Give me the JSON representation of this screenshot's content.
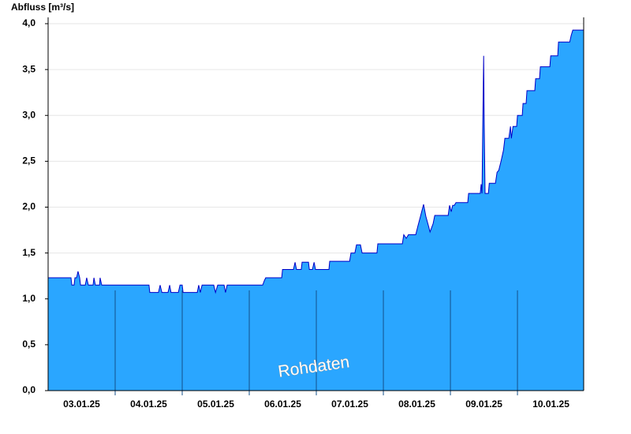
{
  "chart_data": {
    "type": "area",
    "y_label": "Abfluss [m³/s]",
    "annotation": "Rohdaten",
    "fill": "#2aa6ff",
    "color": "#0000c8",
    "grid": true,
    "xlim": [
      0,
      191.7
    ],
    "ylim": [
      0,
      4.0
    ],
    "xticks": [
      {
        "value": 12,
        "label": "03.01.25"
      },
      {
        "value": 36,
        "label": "04.01.25"
      },
      {
        "value": 60,
        "label": "05.01.25"
      },
      {
        "value": 84,
        "label": "06.01.25"
      },
      {
        "value": 108,
        "label": "07.01.25"
      },
      {
        "value": 132,
        "label": "08.01.25"
      },
      {
        "value": 156,
        "label": "09.01.25"
      },
      {
        "value": 180,
        "label": "10.01.25"
      }
    ],
    "xgrid": [
      24,
      48,
      72,
      96,
      120,
      144,
      168
    ],
    "yticks": [
      {
        "value": 0,
        "label": "0,0"
      },
      {
        "value": 0.5,
        "label": "0,5"
      },
      {
        "value": 1,
        "label": "1,0"
      },
      {
        "value": 1.5,
        "label": "1,5"
      },
      {
        "value": 2,
        "label": "2,0"
      },
      {
        "value": 2.5,
        "label": "2,5"
      },
      {
        "value": 3,
        "label": "3,0"
      },
      {
        "value": 3.5,
        "label": "3,5"
      },
      {
        "value": 4,
        "label": "4,0"
      }
    ],
    "x": [
      0,
      8.2,
      8.5,
      9.3,
      9.6,
      10.2,
      10.7,
      11.3,
      11.6,
      13.3,
      13.8,
      14.4,
      16.1,
      16.4,
      16.9,
      18.4,
      18.6,
      19.2,
      36.1,
      36.4,
      39.5,
      40.1,
      40.7,
      42.9,
      43.5,
      44.0,
      46.6,
      47.2,
      48.0,
      48.3,
      53.4,
      53.9,
      54.5,
      55.1,
      59.3,
      59.9,
      60.7,
      63.0,
      63.5,
      64.1,
      76.8,
      77.4,
      77.9,
      83.6,
      83.9,
      87.8,
      88.4,
      88.9,
      90.6,
      90.9,
      93.2,
      93.5,
      94.6,
      95.2,
      95.7,
      100.5,
      100.8,
      107.9,
      108.4,
      109.8,
      110.4,
      111.8,
      112.4,
      117.7,
      118.0,
      126.8,
      127.3,
      128.2,
      129.0,
      131.6,
      132.4,
      133.3,
      134.4,
      135.2,
      136.1,
      136.7,
      137.8,
      138.4,
      143.2,
      143.7,
      144.3,
      144.8,
      145.4,
      146.0,
      150.2,
      150.5,
      154.7,
      155.0,
      155.3,
      155.6,
      155.9,
      156.1,
      156.4,
      157.6,
      157.9,
      160.1,
      160.7,
      161.3,
      162.1,
      163.0,
      163.5,
      164.9,
      165.5,
      165.8,
      166.4,
      167.7,
      168.0,
      169.7,
      170.0,
      171.1,
      171.4,
      174.2,
      174.5,
      175.9,
      176.2,
      179.6,
      179.9,
      182.4,
      182.7,
      186.7,
      187.2,
      187.8,
      191.7
    ],
    "values": [
      1.23,
      1.23,
      1.15,
      1.15,
      1.23,
      1.23,
      1.3,
      1.23,
      1.15,
      1.15,
      1.23,
      1.15,
      1.15,
      1.23,
      1.15,
      1.15,
      1.23,
      1.15,
      1.15,
      1.07,
      1.07,
      1.15,
      1.07,
      1.07,
      1.15,
      1.07,
      1.07,
      1.15,
      1.15,
      1.07,
      1.07,
      1.15,
      1.07,
      1.15,
      1.15,
      1.07,
      1.15,
      1.15,
      1.07,
      1.15,
      1.15,
      1.2,
      1.23,
      1.23,
      1.32,
      1.32,
      1.4,
      1.32,
      1.32,
      1.4,
      1.4,
      1.32,
      1.32,
      1.4,
      1.32,
      1.32,
      1.41,
      1.41,
      1.5,
      1.5,
      1.59,
      1.59,
      1.5,
      1.5,
      1.6,
      1.6,
      1.7,
      1.66,
      1.7,
      1.7,
      1.8,
      1.9,
      2.03,
      1.9,
      1.8,
      1.73,
      1.82,
      1.91,
      1.91,
      2.02,
      1.95,
      2.02,
      2.02,
      2.05,
      2.05,
      2.15,
      2.15,
      2.25,
      2.15,
      2.9,
      3.65,
      2.9,
      2.15,
      2.15,
      2.26,
      2.26,
      2.38,
      2.4,
      2.5,
      2.62,
      2.75,
      2.75,
      2.88,
      2.75,
      2.88,
      2.88,
      3.0,
      3.0,
      3.13,
      3.13,
      3.27,
      3.27,
      3.4,
      3.4,
      3.53,
      3.53,
      3.65,
      3.65,
      3.8,
      3.8,
      3.87,
      3.93,
      3.93
    ]
  }
}
